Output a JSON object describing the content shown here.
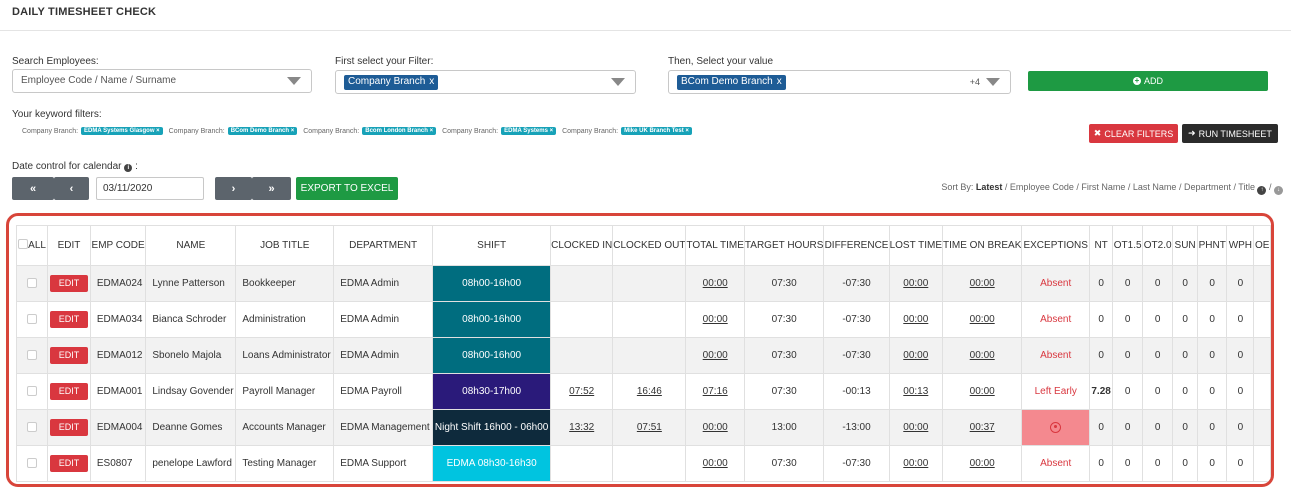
{
  "page": {
    "title": "DAILY TIMESHEET CHECK"
  },
  "filters": {
    "search_label": "Search Employees:",
    "search_placeholder": "Employee Code / Name / Surname",
    "filter_label": "First select your Filter:",
    "filter_tag": "Company Branch",
    "value_label": "Then, Select your value",
    "value_tag": "BCom Demo Branch",
    "value_more": "+4",
    "add_label": "ADD",
    "keyword_label": "Your keyword filters:",
    "keywords": [
      {
        "prefix": "Company Branch:",
        "value": "EDMA Systems Glasgow"
      },
      {
        "prefix": "Company Branch:",
        "value": "BCom Demo Branch"
      },
      {
        "prefix": "Company Branch:",
        "value": "Bcom London Branch"
      },
      {
        "prefix": "Company Branch:",
        "value": "EDMA Systems"
      },
      {
        "prefix": "Company Branch:",
        "value": "Mike UK Branch Test"
      }
    ],
    "clear_label": "CLEAR FILTERS",
    "run_label": "RUN TIMESHEET"
  },
  "date": {
    "label": "Date control for calendar",
    "value": "03/11/2020",
    "first": "«",
    "prev": "‹",
    "next": "›",
    "last": "»",
    "export_label": "EXPORT TO EXCEL"
  },
  "sort": {
    "prefix": "Sort By:",
    "active": "Latest",
    "options": "/ Employee Code / First Name / Last Name / Department / Title"
  },
  "table": {
    "headers": [
      "ALL",
      "EDIT",
      "EMP CODE",
      "NAME",
      "JOB TITLE",
      "DEPARTMENT",
      "SHIFT",
      "CLOCKED IN",
      "CLOCKED OUT",
      "TOTAL TIME",
      "TARGET HOURS",
      "DIFFERENCE",
      "LOST TIME",
      "TIME ON BREAK",
      "EXCEPTIONS",
      "NT",
      "OT1.5",
      "OT2.0",
      "SUN",
      "PHNT",
      "WPH",
      "OE"
    ],
    "edit_label": "EDIT",
    "rows": [
      {
        "code": "EDMA024",
        "name": "Lynne Patterson",
        "job": "Bookkeeper",
        "dept": "EDMA Admin",
        "shift": "08h00-16h00",
        "shift_color": "#006d7f",
        "in": "",
        "out": "",
        "total": "00:00",
        "target": "07:30",
        "diff": "-07:30",
        "lost": "00:00",
        "break": "00:00",
        "exception": "Absent",
        "exc_icon": "",
        "nt": "0",
        "ot15": "0",
        "ot20": "0",
        "sun": "0",
        "phnt": "0",
        "wph": "0"
      },
      {
        "code": "EDMA034",
        "name": "Bianca Schroder",
        "job": "Administration",
        "dept": "EDMA Admin",
        "shift": "08h00-16h00",
        "shift_color": "#006d7f",
        "in": "",
        "out": "",
        "total": "00:00",
        "target": "07:30",
        "diff": "-07:30",
        "lost": "00:00",
        "break": "00:00",
        "exception": "Absent",
        "exc_icon": "",
        "nt": "0",
        "ot15": "0",
        "ot20": "0",
        "sun": "0",
        "phnt": "0",
        "wph": "0"
      },
      {
        "code": "EDMA012",
        "name": "Sbonelo Majola",
        "job": "Loans Administrator",
        "dept": "EDMA Admin",
        "shift": "08h00-16h00",
        "shift_color": "#006d7f",
        "in": "",
        "out": "",
        "total": "00:00",
        "target": "07:30",
        "diff": "-07:30",
        "lost": "00:00",
        "break": "00:00",
        "exception": "Absent",
        "exc_icon": "",
        "nt": "0",
        "ot15": "0",
        "ot20": "0",
        "sun": "0",
        "phnt": "0",
        "wph": "0"
      },
      {
        "code": "EDMA001",
        "name": "Lindsay Govender",
        "job": "Payroll Manager",
        "dept": "EDMA Payroll",
        "shift": "08h30-17h00",
        "shift_color": "#2a1a7a",
        "in": "07:52",
        "out": "16:46",
        "total": "07:16",
        "target": "07:30",
        "diff": "-00:13",
        "lost": "00:13",
        "break": "00:00",
        "exception": "Left Early",
        "exc_icon": "",
        "nt": "7.28",
        "ot15": "0",
        "ot20": "0",
        "sun": "0",
        "phnt": "0",
        "wph": "0"
      },
      {
        "code": "EDMA004",
        "name": "Deanne Gomes",
        "job": "Accounts Manager",
        "dept": "EDMA Management",
        "shift": "Night Shift 16h00 - 06h00",
        "shift_color": "#0e2a3c",
        "in": "13:32",
        "out": "07:51",
        "total": "00:00",
        "target": "13:00",
        "diff": "-13:00",
        "lost": "00:00",
        "break": "00:37",
        "exception": "",
        "exc_icon": "alert-circle-icon",
        "nt": "0",
        "ot15": "0",
        "ot20": "0",
        "sun": "0",
        "phnt": "0",
        "wph": "0"
      },
      {
        "code": "ES0807",
        "name": "penelope Lawford",
        "job": "Testing Manager",
        "dept": "EDMA Support",
        "shift": "EDMA 08h30-16h30",
        "shift_color": "#00c4e0",
        "in": "",
        "out": "",
        "total": "00:00",
        "target": "07:30",
        "diff": "-07:30",
        "lost": "00:00",
        "break": "00:00",
        "exception": "Absent",
        "exc_icon": "",
        "nt": "0",
        "ot15": "0",
        "ot20": "0",
        "sun": "0",
        "phnt": "0",
        "wph": "0"
      }
    ]
  }
}
